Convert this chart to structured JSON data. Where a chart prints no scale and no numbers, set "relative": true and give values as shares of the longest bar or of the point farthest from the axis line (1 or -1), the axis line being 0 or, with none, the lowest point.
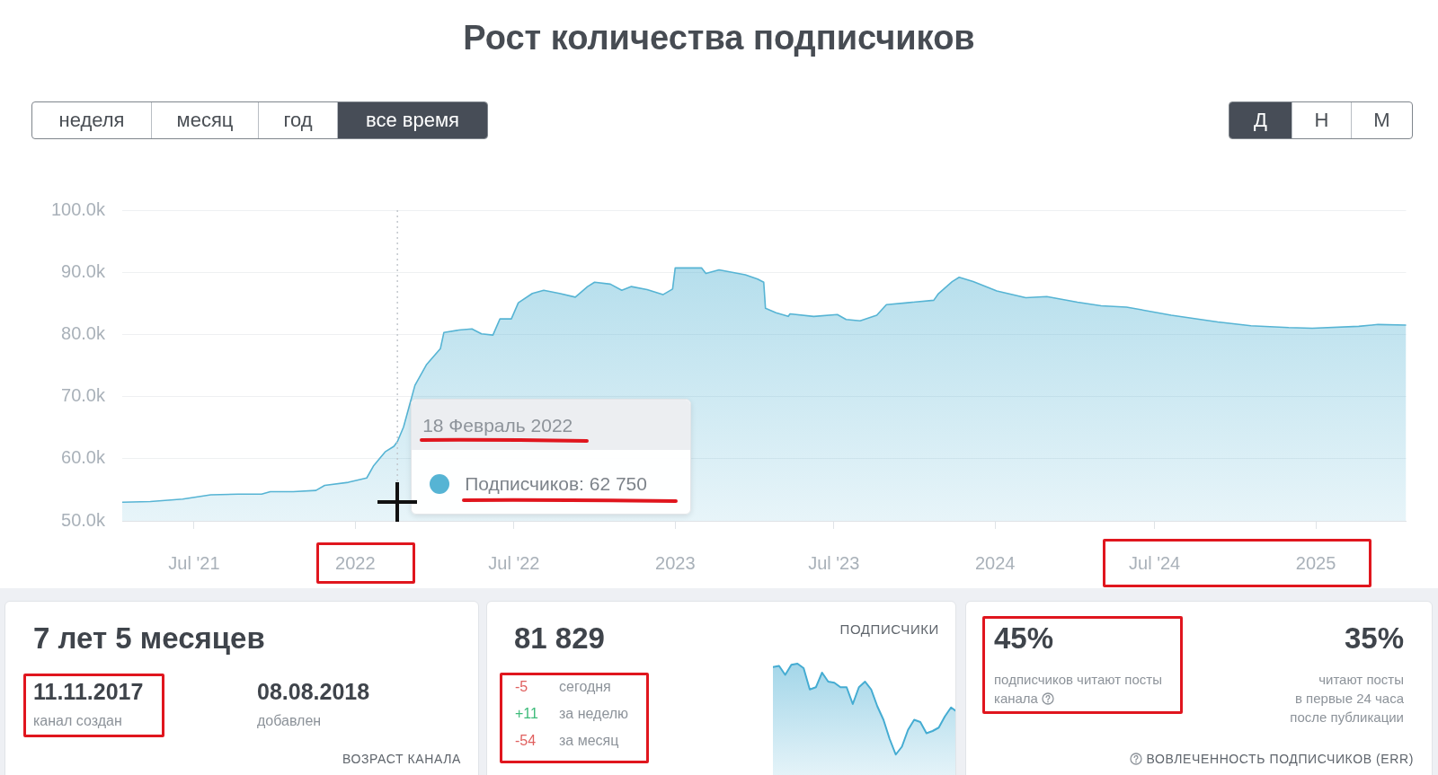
{
  "chart_data": [
    {
      "type": "area",
      "title": "Рост количества подписчиков",
      "annotations": [
        "неделя",
        "месяц",
        "год",
        "все время",
        "Д",
        "Н",
        "М",
        {
          "text": "18 Февраль 2022",
          "x": "2022-02-18",
          "y": 62750
        },
        "Подписчиков: 62 750"
      ],
      "x": [
        "2021-04-10",
        "2021-05-12",
        "2021-06-18",
        "2021-07-20",
        "2021-08-20",
        "2021-09-16",
        "2021-09-26",
        "2021-10-22",
        "2021-11-17",
        "2021-11-27",
        "2021-12-24",
        "2022-01-14",
        "2022-01-22",
        "2022-02-04",
        "2022-02-14",
        "2022-02-18",
        "2022-02-25",
        "2022-03-10",
        "2022-03-23",
        "2022-04-08",
        "2022-04-12",
        "2022-04-29",
        "2022-05-14",
        "2022-05-25",
        "2022-06-07",
        "2022-06-15",
        "2022-06-28",
        "2022-07-06",
        "2022-07-22",
        "2022-08-04",
        "2022-08-22",
        "2022-09-09",
        "2022-09-23",
        "2022-10-01",
        "2022-10-19",
        "2022-11-01",
        "2022-11-12",
        "2022-11-30",
        "2022-12-18",
        "2022-12-29",
        "2023-01-01",
        "2023-01-31",
        "2023-02-05",
        "2023-02-20",
        "2023-03-22",
        "2023-04-05",
        "2023-04-12",
        "2023-04-14",
        "2023-04-26",
        "2023-05-10",
        "2023-05-12",
        "2023-06-08",
        "2023-07-05",
        "2023-07-15",
        "2023-07-31",
        "2023-08-19",
        "2023-08-30",
        "2023-09-23",
        "2023-10-23",
        "2023-10-28",
        "2023-11-13",
        "2023-11-21",
        "2023-12-07",
        "2024-01-03",
        "2024-02-05",
        "2024-02-29",
        "2024-04-04",
        "2024-05-01",
        "2024-05-30",
        "2024-07-20",
        "2024-09-11",
        "2024-10-19",
        "2024-12-01",
        "2024-12-28",
        "2025-02-19",
        "2025-03-13",
        "2025-04-14"
      ],
      "values": [
        53000,
        53100,
        53500,
        54200,
        54300,
        54300,
        54700,
        54700,
        54900,
        55700,
        56200,
        56900,
        58900,
        61100,
        62000,
        62750,
        65100,
        71800,
        75100,
        77700,
        80300,
        80700,
        80900,
        80100,
        79900,
        82500,
        82500,
        85100,
        86600,
        87100,
        86600,
        86000,
        87700,
        88400,
        88100,
        87100,
        87700,
        87200,
        86400,
        87300,
        90700,
        90700,
        89800,
        90400,
        89600,
        88900,
        88400,
        84200,
        83500,
        82900,
        83300,
        82900,
        83200,
        82400,
        82200,
        83100,
        84800,
        85100,
        85500,
        86500,
        88500,
        89200,
        88500,
        87000,
        85900,
        86100,
        85200,
        84600,
        84400,
        83100,
        82000,
        81400,
        81100,
        81000,
        81300,
        81600,
        81500
      ],
      "color": "#56b4d4",
      "xlim": [
        "2021-04-10",
        "2025-04-14"
      ],
      "xticks": [
        {
          "value": "2021-07-01",
          "label": "Jul '21"
        },
        {
          "value": "2022-01-01",
          "label": "2022"
        },
        {
          "value": "2022-07-01",
          "label": "Jul '22"
        },
        {
          "value": "2023-01-01",
          "label": "2023"
        },
        {
          "value": "2023-07-01",
          "label": "Jul '23"
        },
        {
          "value": "2024-01-01",
          "label": "2024"
        },
        {
          "value": "2024-07-01",
          "label": "Jul '24"
        },
        {
          "value": "2025-01-01",
          "label": "2025"
        }
      ],
      "ylim": [
        50000,
        100000
      ],
      "yticks": [
        {
          "value": 50000,
          "label": "50.0k"
        },
        {
          "value": 60000,
          "label": "60.0k"
        },
        {
          "value": 70000,
          "label": "70.0k"
        },
        {
          "value": 80000,
          "label": "80.0k"
        },
        {
          "value": 90000,
          "label": "90.0k"
        },
        {
          "value": 100000,
          "label": "100.0k"
        }
      ],
      "grid": "y",
      "ref_lines": [
        {
          "axis": "x",
          "value": "2022-02-18",
          "color": "#c3c8cd",
          "line_style": "dotted"
        }
      ]
    },
    {
      "type": "other",
      "annotations": [
        "7 лет 5 месяцев",
        "11.11.2017",
        "канал создан",
        "08.08.2018",
        "добавлен",
        "ВОЗРАСТ КАНАЛА"
      ]
    },
    {
      "type": "area",
      "relative": true,
      "categories": [
        null,
        null,
        null,
        null,
        null,
        null,
        null,
        null,
        null,
        null,
        null,
        null,
        null,
        null,
        null,
        null,
        null,
        null,
        null,
        null,
        null,
        null,
        null,
        null,
        null,
        null,
        null,
        null,
        null,
        null,
        null
      ],
      "values": [
        0.97,
        0.98,
        0.9,
        0.99,
        1,
        0.96,
        0.77,
        0.79,
        0.92,
        0.84,
        0.83,
        0.79,
        0.79,
        0.64,
        0.79,
        0.84,
        0.77,
        0.62,
        0.5,
        0.33,
        0.19,
        0.26,
        0.41,
        0.5,
        0.48,
        0.38,
        0.4,
        0.43,
        0.53,
        0.61,
        0.57
      ],
      "color": "#45acd2",
      "annotations": [
        "81 829",
        "ПОДПИСЧИКИ",
        "-5",
        "сегодня",
        "+11",
        "за неделю",
        "-54",
        "за месяц"
      ]
    },
    {
      "type": "other",
      "annotations": [
        "45%",
        "подписчиков читают посты\nканала",
        "35%",
        "читают посты\nв первые 24 часа\nпосле публикации",
        "ВОВЛЕЧЕННОСТЬ ПОДПИСЧИКОВ (ERR)"
      ]
    }
  ]
}
